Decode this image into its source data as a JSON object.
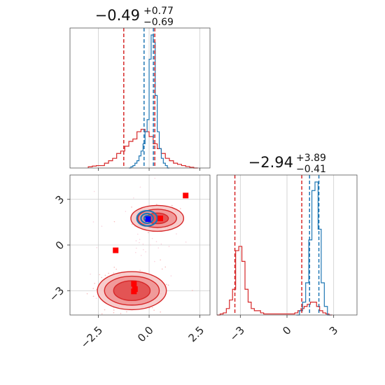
{
  "chart_data": [
    {
      "panel": "marginal-1",
      "type": "histogram",
      "title": {
        "median": "−0.49",
        "plus": "+0.77",
        "minus": "−0.69"
      },
      "xlim": [
        -3.9,
        3.0
      ],
      "grid": true,
      "series": [
        {
          "name": "",
          "color": "#d62728",
          "bins_x": [
            -3.0,
            -2.8,
            -2.6,
            -2.4,
            -2.2,
            -2.0,
            -1.8,
            -1.6,
            -1.4,
            -1.2,
            -1.0,
            -0.8,
            -0.6,
            -0.4,
            -0.2,
            0.0,
            0.2,
            0.4,
            0.6,
            0.8,
            1.0,
            1.2,
            1.4,
            1.6,
            1.8,
            2.0,
            2.2
          ],
          "counts": [
            0.5,
            0.8,
            1,
            1,
            2,
            3,
            4,
            6,
            7,
            9,
            11,
            12,
            15,
            16,
            15,
            13,
            10,
            8,
            6,
            4,
            3,
            2,
            1.5,
            1,
            0.6,
            0.3,
            0
          ],
          "quantiles": [
            -1.25,
            0.28
          ]
        },
        {
          "name": "",
          "color": "#1f77b4",
          "bins_x": [
            -1.0,
            -0.9,
            -0.8,
            -0.7,
            -0.6,
            -0.5,
            -0.4,
            -0.3,
            -0.2,
            -0.1,
            0.0,
            0.1,
            0.2,
            0.3,
            0.4,
            0.5,
            0.6,
            0.7,
            0.8,
            0.9
          ],
          "counts": [
            0,
            0.5,
            1,
            2,
            3,
            5,
            7,
            10,
            15,
            20,
            45,
            55,
            52,
            30,
            15,
            8,
            4,
            2,
            1,
            0
          ],
          "quantiles": [
            -0.25,
            0.21
          ]
        }
      ]
    },
    {
      "panel": "marginal-2",
      "type": "histogram",
      "title": {
        "median": "−2.94",
        "plus": "+3.89",
        "minus": "−0.41"
      },
      "xlim": [
        -4.5,
        4.5
      ],
      "xticks": [
        "−3",
        "0",
        "3"
      ],
      "grid": true,
      "series": [
        {
          "name": "",
          "color": "#d62728",
          "bins_x": [
            -4.5,
            -4.3,
            -4.1,
            -3.9,
            -3.7,
            -3.5,
            -3.3,
            -3.1,
            -2.9,
            -2.7,
            -2.5,
            -2.3,
            -2.1,
            -1.9,
            -1.7,
            -1.5,
            -1.3,
            -1.1,
            -0.9,
            -0.7,
            -0.5,
            -0.3,
            -0.1,
            0.1,
            0.3,
            0.5,
            0.7,
            0.9,
            1.1,
            1.3,
            1.5,
            1.7,
            1.9,
            2.1,
            2.3,
            2.5,
            2.7
          ],
          "counts": [
            0,
            0.5,
            1,
            3,
            7,
            12,
            30,
            32,
            25,
            12,
            6,
            3,
            2,
            2,
            1,
            0.5,
            0.5,
            0.5,
            0.5,
            0.5,
            0.5,
            0.5,
            0.5,
            0.5,
            0.5,
            1,
            2,
            3,
            4,
            5,
            6,
            6,
            4,
            2,
            1,
            0.5,
            0
          ],
          "quantiles": [
            -3.35,
            0.95
          ]
        },
        {
          "name": "",
          "color": "#1f77b4",
          "bins_x": [
            0.6,
            0.8,
            1.0,
            1.2,
            1.4,
            1.6,
            1.8,
            2.0,
            2.2,
            2.4,
            2.6
          ],
          "counts": [
            0,
            2,
            6,
            15,
            35,
            58,
            62,
            40,
            15,
            4,
            0
          ],
          "quantiles": [
            1.45,
            2.05
          ]
        }
      ]
    },
    {
      "panel": "joint",
      "type": "scatter",
      "xlim": [
        -3.9,
        3.0
      ],
      "ylim": [
        -4.6,
        4.6
      ],
      "xticks": [
        "−2.5",
        "0.0",
        "2.5"
      ],
      "yticks": [
        "−3",
        "0",
        "3"
      ],
      "grid": true,
      "contours": [
        {
          "color": "#d62728",
          "cx": -0.85,
          "cy": -3.0,
          "rx": [
            1.7,
            1.35,
            0.9
          ],
          "ry": [
            1.25,
            0.95,
            0.65
          ]
        },
        {
          "color": "#d62728",
          "cx": 0.4,
          "cy": 1.75,
          "rx": [
            1.3,
            0.95,
            0.55
          ],
          "ry": [
            0.85,
            0.6,
            0.35
          ]
        },
        {
          "color": "#1f77b4",
          "cx": -0.1,
          "cy": 1.75,
          "rx": [
            0.5,
            0.3,
            0.15
          ],
          "ry": [
            0.5,
            0.32,
            0.18
          ]
        }
      ],
      "markers": {
        "red": [
          [
            1.8,
            3.25
          ],
          [
            -1.65,
            -0.35
          ],
          [
            0.55,
            1.75
          ],
          [
            -0.75,
            -2.55
          ],
          [
            -0.7,
            -2.9
          ],
          [
            -0.75,
            -3.05
          ]
        ],
        "blue": [
          [
            -0.05,
            1.7
          ]
        ]
      }
    }
  ]
}
